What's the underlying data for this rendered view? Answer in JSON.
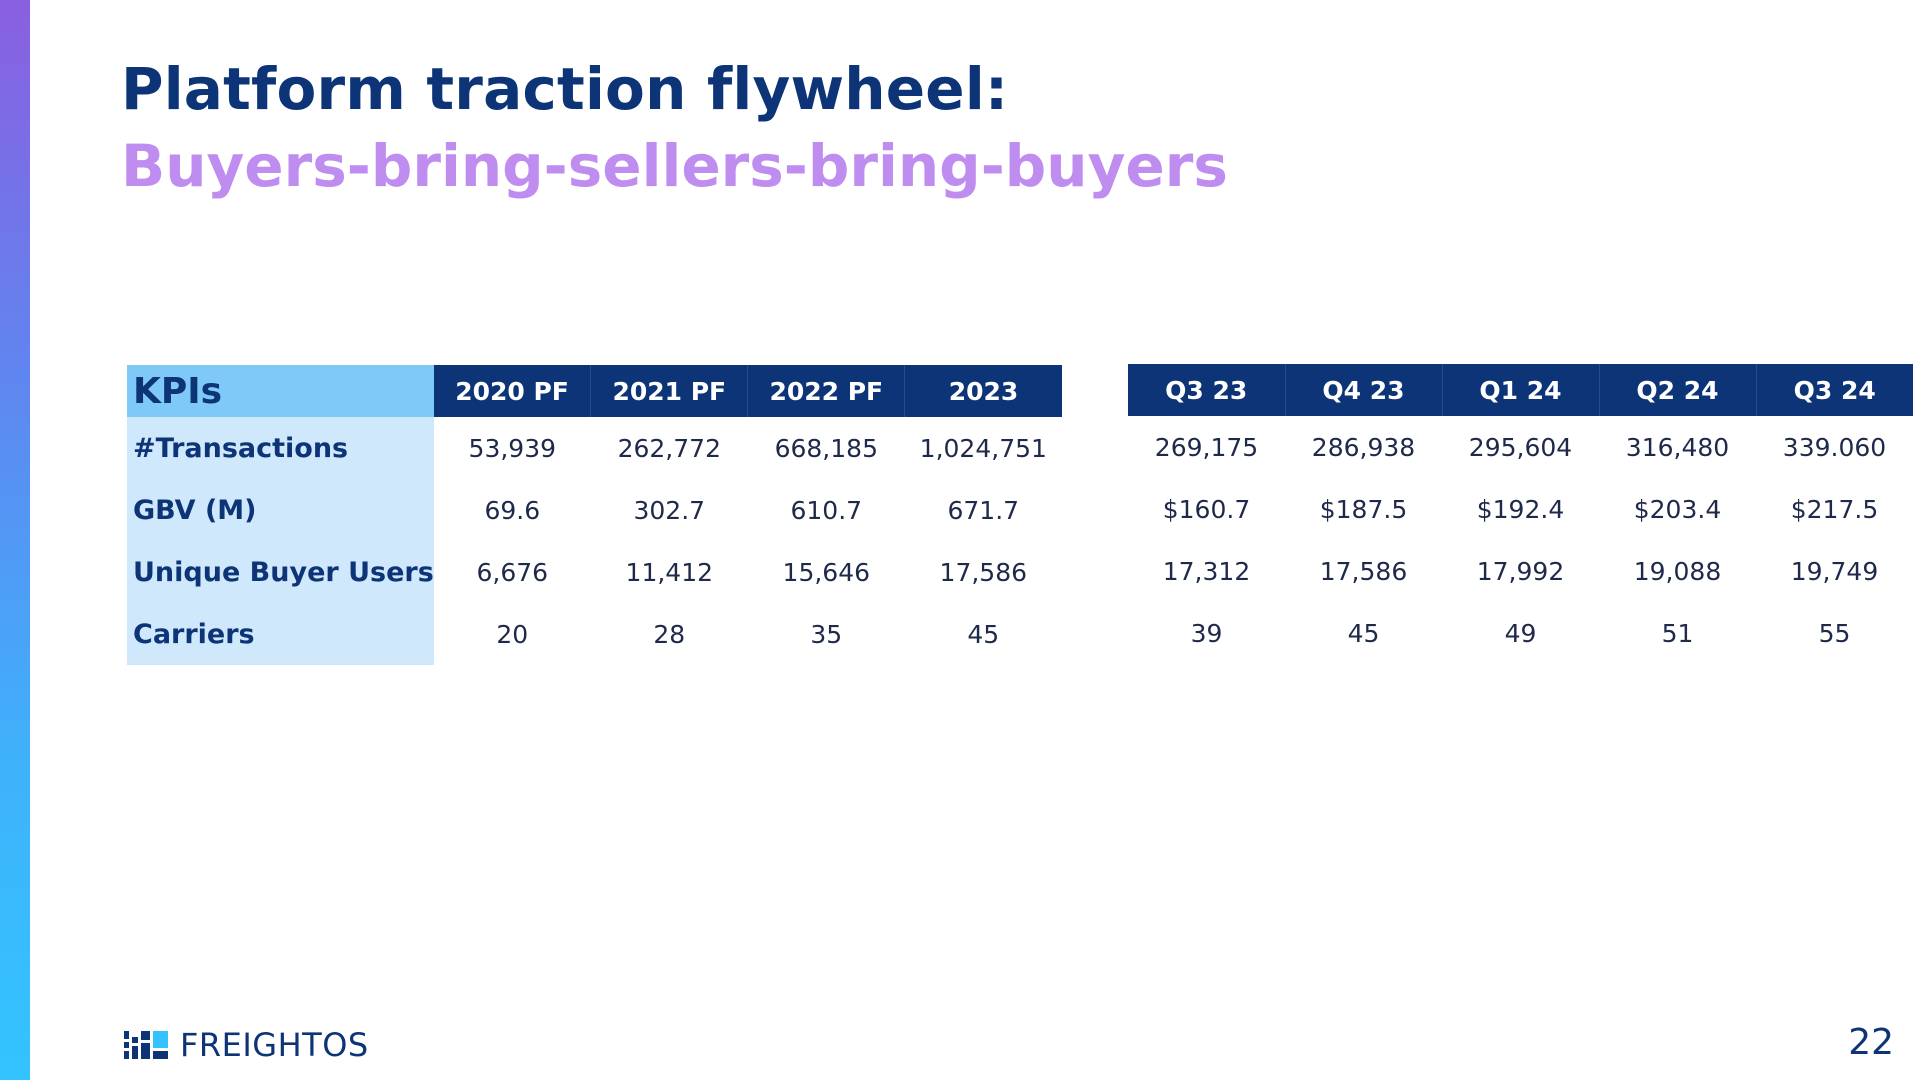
{
  "slide": {
    "title_line1": "Platform traction flywheel:",
    "title_line2": "Buyers-bring-sellers-bring-buyers",
    "page_number": "22",
    "logo_text": "FREIGHTOS",
    "colors": {
      "navy": "#0c3476",
      "lilac": "#bf8cf0",
      "light_blue": "#7ec9f7",
      "pale_blue": "#cfe8fc"
    }
  },
  "annual_table": {
    "kpi_header": "KPIs",
    "columns": [
      "2020 PF",
      "2021 PF",
      "2022 PF",
      "2023"
    ],
    "rows": [
      {
        "label": "#Transactions",
        "values": [
          "53,939",
          "262,772",
          "668,185",
          "1,024,751"
        ]
      },
      {
        "label": "GBV (M)",
        "values": [
          "69.6",
          "302.7",
          "610.7",
          "671.7"
        ]
      },
      {
        "label": "Unique Buyer Users",
        "values": [
          "6,676",
          "11,412",
          "15,646",
          "17,586"
        ]
      },
      {
        "label": "Carriers",
        "values": [
          "20",
          "28",
          "35",
          "45"
        ]
      }
    ]
  },
  "quarterly_table": {
    "columns": [
      "Q3 23",
      "Q4 23",
      "Q1 24",
      "Q2 24",
      "Q3 24"
    ],
    "rows": [
      {
        "values": [
          "269,175",
          "286,938",
          "295,604",
          "316,480",
          "339.060"
        ]
      },
      {
        "values": [
          "$160.7",
          "$187.5",
          "$192.4",
          "$203.4",
          "$217.5"
        ]
      },
      {
        "values": [
          "17,312",
          "17,586",
          "17,992",
          "19,088",
          "19,749"
        ]
      },
      {
        "values": [
          "39",
          "45",
          "49",
          "51",
          "55"
        ]
      }
    ]
  }
}
